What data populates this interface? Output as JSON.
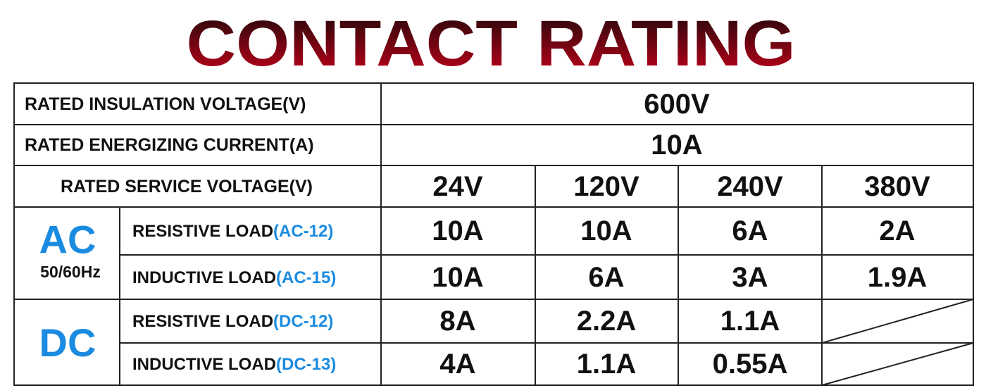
{
  "header": {
    "title": "CONTACT RATING"
  },
  "table": {
    "insulation_voltage": {
      "label": "RATED INSULATION VOLTAGE(V)",
      "value": "600V"
    },
    "energizing_current": {
      "label": "RATED ENERGIZING CURRENT(A)",
      "value": "10A"
    },
    "service_voltage": {
      "label": "RATED SERVICE VOLTAGE(V)",
      "values": [
        "24V",
        "120V",
        "240V",
        "380V"
      ]
    },
    "groups": [
      {
        "name": "AC",
        "sub": "50/60Hz",
        "rows": [
          {
            "load": "RESISTIVE LOAD",
            "code": "(AC-12)",
            "values": [
              "10A",
              "10A",
              "6A",
              "2A"
            ]
          },
          {
            "load": "INDUCTIVE LOAD",
            "code": "(AC-15)",
            "values": [
              "10A",
              "6A",
              "3A",
              "1.9A"
            ]
          }
        ]
      },
      {
        "name": "DC",
        "rows": [
          {
            "load": "RESISTIVE LOAD",
            "code": "(DC-12)",
            "values": [
              "8A",
              "2.2A",
              "1.1A"
            ]
          },
          {
            "load": "INDUCTIVE LOAD",
            "code": "(DC-13)",
            "values": [
              "4A",
              "1.1A",
              "0.55A"
            ]
          }
        ]
      }
    ]
  }
}
